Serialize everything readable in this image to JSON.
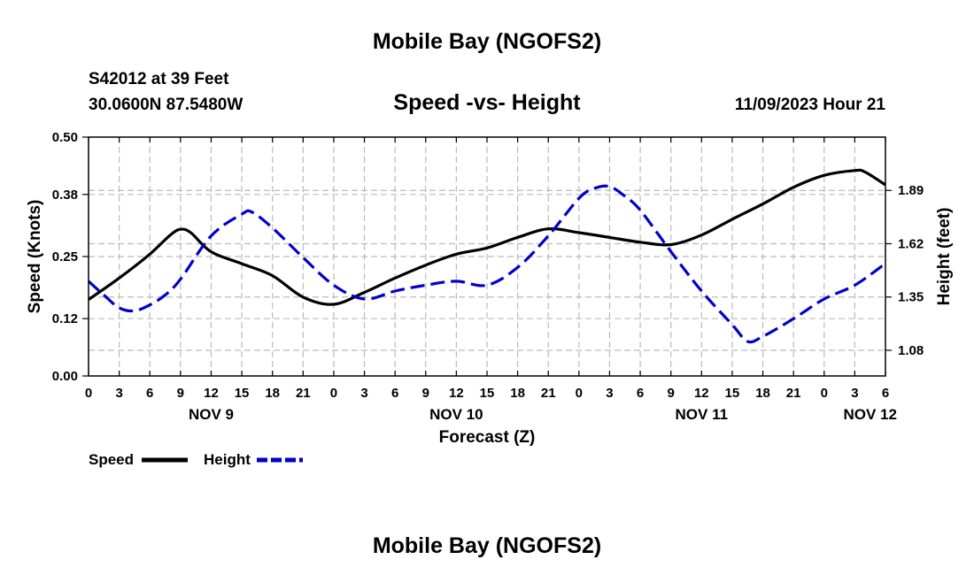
{
  "header": {
    "title": "Mobile Bay (NGOFS2)",
    "station": "S42012 at 39 Feet",
    "coords": "30.0600N  87.5480W",
    "subtitle": "Speed -vs- Height",
    "datetime": "11/09/2023 Hour 21"
  },
  "footer": {
    "repeat_title": "Mobile Bay (NGOFS2)"
  },
  "colors": {
    "speed": "#000000",
    "height": "#0000cc",
    "grid": "#bbbbbb"
  },
  "chart_data": {
    "type": "line",
    "title": "Speed -vs- Height",
    "xlabel": "Forecast (Z)",
    "ylabel": "Speed (Knots)",
    "y2label": "Height (feet)",
    "xlim": [
      0,
      78
    ],
    "ylim": [
      0,
      0.5
    ],
    "y2lim": [
      0.95,
      2.16
    ],
    "x_tick_values": [
      0,
      3,
      6,
      9,
      12,
      15,
      18,
      21,
      24,
      27,
      30,
      33,
      36,
      39,
      42,
      45,
      48,
      51,
      54,
      57,
      60,
      63,
      66,
      69,
      72,
      75,
      78
    ],
    "x_tick_labels": [
      "0",
      "3",
      "6",
      "9",
      "12",
      "15",
      "18",
      "21",
      "0",
      "3",
      "6",
      "9",
      "12",
      "15",
      "18",
      "21",
      "0",
      "3",
      "6",
      "9",
      "12",
      "15",
      "18",
      "21",
      "0",
      "3",
      "6"
    ],
    "day_labels": [
      {
        "x": 12,
        "label": "NOV 9"
      },
      {
        "x": 36,
        "label": "NOV 10"
      },
      {
        "x": 60,
        "label": "NOV 11"
      },
      {
        "x": 76.5,
        "label": "NOV 12"
      }
    ],
    "y_ticks": [
      0.0,
      0.12,
      0.25,
      0.38,
      0.5
    ],
    "y_tick_labels": [
      "0.00",
      "0.12",
      "0.25",
      "0.38",
      "0.50"
    ],
    "y2_ticks": [
      1.08,
      1.35,
      1.62,
      1.89
    ],
    "y2_tick_labels": [
      "1.08",
      "1.35",
      "1.62",
      "1.89"
    ],
    "legend_position": "bottom-left",
    "series": [
      {
        "name": "Speed",
        "axis": "left",
        "style": "solid",
        "x": [
          0,
          3,
          6,
          8,
          9,
          10,
          12,
          15,
          18,
          21,
          24,
          27,
          30,
          33,
          36,
          39,
          42,
          45,
          48,
          51,
          54,
          57,
          60,
          63,
          66,
          69,
          72,
          75,
          76,
          78
        ],
        "values": [
          0.16,
          0.205,
          0.255,
          0.295,
          0.307,
          0.3,
          0.26,
          0.235,
          0.21,
          0.165,
          0.15,
          0.175,
          0.205,
          0.232,
          0.255,
          0.268,
          0.29,
          0.308,
          0.3,
          0.29,
          0.28,
          0.275,
          0.295,
          0.328,
          0.36,
          0.395,
          0.42,
          0.43,
          0.427,
          0.4
        ]
      },
      {
        "name": "Height",
        "axis": "right",
        "style": "dashed",
        "x": [
          0,
          1.5,
          3,
          4.5,
          6,
          7.5,
          9,
          12,
          15,
          16,
          18,
          21,
          24,
          27,
          30,
          33,
          36,
          39,
          42,
          45,
          48,
          49.5,
          51,
          52.5,
          54,
          57,
          60,
          63,
          64.5,
          66,
          69,
          72,
          75,
          78
        ],
        "values": [
          1.43,
          1.36,
          1.295,
          1.28,
          1.31,
          1.36,
          1.44,
          1.66,
          1.77,
          1.78,
          1.7,
          1.55,
          1.41,
          1.34,
          1.38,
          1.41,
          1.43,
          1.41,
          1.5,
          1.66,
          1.85,
          1.9,
          1.91,
          1.86,
          1.79,
          1.58,
          1.38,
          1.21,
          1.125,
          1.15,
          1.24,
          1.34,
          1.41,
          1.52
        ]
      }
    ]
  }
}
